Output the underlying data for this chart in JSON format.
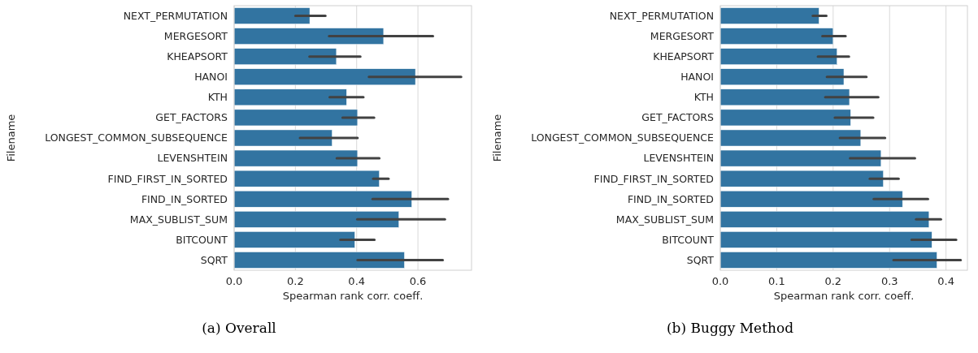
{
  "chart_data": [
    {
      "type": "bar",
      "orientation": "horizontal",
      "categories": [
        "NEXT_PERMUTATION",
        "MERGESORT",
        "KHEAPSORT",
        "HANOI",
        "KTH",
        "GET_FACTORS",
        "LONGEST_COMMON_SUBSEQUENCE",
        "LEVENSHTEIN",
        "FIND_FIRST_IN_SORTED",
        "FIND_IN_SORTED",
        "MAX_SUBLIST_SUM",
        "BITCOUNT",
        "SQRT"
      ],
      "values": [
        0.247,
        0.488,
        0.334,
        0.592,
        0.367,
        0.403,
        0.32,
        0.403,
        0.474,
        0.58,
        0.538,
        0.394,
        0.556
      ],
      "errors": [
        [
          0.2,
          0.298
        ],
        [
          0.31,
          0.649
        ],
        [
          0.246,
          0.412
        ],
        [
          0.44,
          0.741
        ],
        [
          0.312,
          0.422
        ],
        [
          0.354,
          0.457
        ],
        [
          0.215,
          0.403
        ],
        [
          0.335,
          0.474
        ],
        [
          0.454,
          0.504
        ],
        [
          0.452,
          0.698
        ],
        [
          0.402,
          0.688
        ],
        [
          0.347,
          0.458
        ],
        [
          0.403,
          0.681
        ]
      ],
      "color": "#3274a1",
      "xlim": [
        0,
        0.775
      ],
      "xticks": [
        {
          "value": 0,
          "label": "0.0"
        },
        {
          "value": 0.2,
          "label": "0.2"
        },
        {
          "value": 0.4,
          "label": "0.4"
        },
        {
          "value": 0.6,
          "label": "0.6"
        }
      ],
      "xlabel": "Spearman rank corr. coeff.",
      "ylabel": "Filename",
      "grid": "x",
      "annotations": [
        "(a)  Overall"
      ]
    },
    {
      "type": "bar",
      "orientation": "horizontal",
      "categories": [
        "NEXT_PERMUTATION",
        "MERGESORT",
        "KHEAPSORT",
        "HANOI",
        "KTH",
        "GET_FACTORS",
        "LONGEST_COMMON_SUBSEQUENCE",
        "LEVENSHTEIN",
        "FIND_FIRST_IN_SORTED",
        "FIND_IN_SORTED",
        "MAX_SUBLIST_SUM",
        "BITCOUNT",
        "SQRT"
      ],
      "values": [
        0.175,
        0.2,
        0.207,
        0.219,
        0.229,
        0.231,
        0.249,
        0.285,
        0.289,
        0.323,
        0.37,
        0.375,
        0.384
      ],
      "errors": [
        [
          0.164,
          0.188
        ],
        [
          0.181,
          0.222
        ],
        [
          0.173,
          0.228
        ],
        [
          0.189,
          0.259
        ],
        [
          0.186,
          0.28
        ],
        [
          0.203,
          0.271
        ],
        [
          0.212,
          0.292
        ],
        [
          0.23,
          0.345
        ],
        [
          0.265,
          0.316
        ],
        [
          0.272,
          0.368
        ],
        [
          0.347,
          0.391
        ],
        [
          0.339,
          0.418
        ],
        [
          0.307,
          0.426
        ]
      ],
      "color": "#3274a1",
      "xlim": [
        0,
        0.438
      ],
      "xticks": [
        {
          "value": 0,
          "label": "0.0"
        },
        {
          "value": 0.1,
          "label": "0.1"
        },
        {
          "value": 0.2,
          "label": "0.2"
        },
        {
          "value": 0.3,
          "label": "0.3"
        },
        {
          "value": 0.4,
          "label": "0.4"
        }
      ],
      "xlabel": "Spearman rank corr. coeff.",
      "ylabel": "Filename",
      "grid": "x",
      "annotations": [
        "(b)  Buggy Method"
      ]
    }
  ]
}
